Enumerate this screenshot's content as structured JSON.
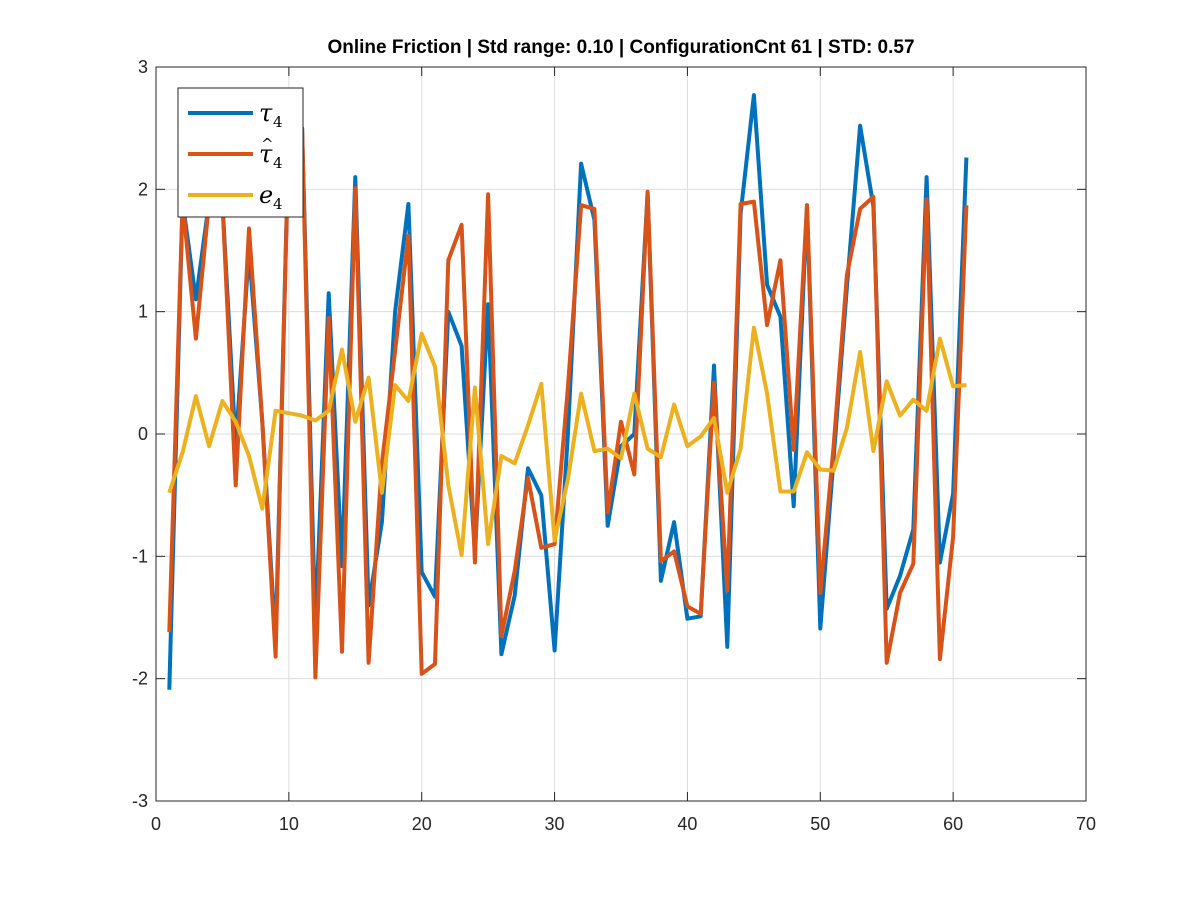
{
  "chart_data": {
    "type": "line",
    "title": "Online Friction | Std range: 0.10 | ConfigurationCnt 61 | STD: 0.57",
    "xlabel": "",
    "ylabel": "",
    "xlim": [
      0,
      70
    ],
    "ylim": [
      -3,
      3
    ],
    "xticks": [
      0,
      10,
      20,
      30,
      40,
      50,
      60,
      70
    ],
    "yticks": [
      -3,
      -2,
      -1,
      0,
      1,
      2,
      3
    ],
    "grid": true,
    "legend_position": "top-left",
    "x": [
      1,
      2,
      3,
      4,
      5,
      6,
      7,
      8,
      9,
      10,
      11,
      12,
      13,
      14,
      15,
      16,
      17,
      18,
      19,
      20,
      21,
      22,
      23,
      24,
      25,
      26,
      27,
      28,
      29,
      30,
      31,
      32,
      33,
      34,
      35,
      36,
      37,
      38,
      39,
      40,
      41,
      42,
      43,
      44,
      45,
      46,
      47,
      48,
      49,
      50,
      51,
      52,
      53,
      54,
      55,
      56,
      57,
      58,
      59,
      60,
      61
    ],
    "series": [
      {
        "name": "τ",
        "subscript": "4",
        "accent": "",
        "color": "#0072BD",
        "values": [
          -2.09,
          1.9,
          1.1,
          1.9,
          1.9,
          -0.1,
          1.5,
          0.1,
          -1.7,
          2.5,
          2.5,
          -1.6,
          1.15,
          -1.08,
          2.1,
          -1.4,
          -0.72,
          1.0,
          1.88,
          -1.13,
          -1.33,
          1.0,
          0.72,
          -0.97,
          1.06,
          -1.8,
          -1.32,
          -0.28,
          -0.5,
          -1.77,
          0.0,
          2.21,
          1.75,
          -0.75,
          -0.1,
          0.0,
          1.97,
          -1.2,
          -0.72,
          -1.51,
          -1.49,
          0.56,
          -1.74,
          1.8,
          2.77,
          1.22,
          0.96,
          -0.59,
          1.87,
          -1.59,
          -0.2,
          1.2,
          2.52,
          1.86,
          -1.43,
          -1.16,
          -0.78,
          2.1,
          -1.05,
          -0.49,
          2.26
        ]
      },
      {
        "name": "τ",
        "subscript": "4",
        "accent": "^",
        "color": "#D95319",
        "values": [
          -1.62,
          1.9,
          0.78,
          1.9,
          1.9,
          -0.42,
          1.68,
          0.1,
          -1.82,
          2.5,
          2.5,
          -1.99,
          0.95,
          -1.78,
          2.01,
          -1.87,
          -0.24,
          0.68,
          1.62,
          -1.96,
          -1.88,
          1.42,
          1.71,
          -1.05,
          1.96,
          -1.65,
          -1.12,
          -0.36,
          -0.93,
          -0.9,
          0.38,
          1.87,
          1.84,
          -0.64,
          0.1,
          -0.33,
          1.98,
          -1.04,
          -0.96,
          -1.41,
          -1.47,
          0.42,
          -1.28,
          1.88,
          1.9,
          0.89,
          1.42,
          -0.13,
          1.87,
          -1.3,
          -0.1,
          1.3,
          1.84,
          1.94,
          -1.87,
          -1.3,
          -1.06,
          1.92,
          -1.84,
          -0.84,
          1.87
        ]
      },
      {
        "name": "e",
        "subscript": "4",
        "accent": "",
        "color": "#EDB120",
        "values": [
          -0.48,
          -0.15,
          0.31,
          -0.1,
          0.27,
          0.1,
          -0.18,
          -0.61,
          0.19,
          0.17,
          0.15,
          0.11,
          0.19,
          0.69,
          0.1,
          0.46,
          -0.48,
          0.4,
          0.27,
          0.82,
          0.55,
          -0.42,
          -0.99,
          0.38,
          -0.9,
          -0.18,
          -0.24,
          0.07,
          0.41,
          -0.87,
          -0.37,
          0.33,
          -0.14,
          -0.12,
          -0.2,
          0.33,
          -0.12,
          -0.19,
          0.24,
          -0.1,
          -0.02,
          0.13,
          -0.48,
          -0.12,
          0.87,
          0.33,
          -0.47,
          -0.47,
          -0.15,
          -0.29,
          -0.3,
          0.05,
          0.67,
          -0.14,
          0.43,
          0.15,
          0.28,
          0.19,
          0.78,
          0.39,
          0.4
        ]
      }
    ]
  }
}
